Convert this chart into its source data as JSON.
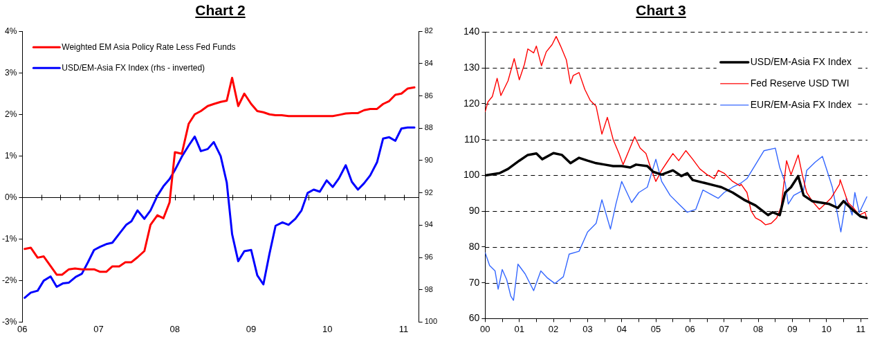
{
  "chart_data": [
    {
      "type": "line",
      "title": "Chart 2",
      "legend": "top left",
      "xlim": [
        2006,
        2011.2
      ],
      "xticks": [
        {
          "value": 2006,
          "label": "06"
        },
        {
          "value": 2006.25,
          "label": null
        },
        {
          "value": 2006.5,
          "label": null
        },
        {
          "value": 2006.75,
          "label": null
        },
        {
          "value": 2007,
          "label": "07"
        },
        {
          "value": 2007.25,
          "label": null
        },
        {
          "value": 2007.5,
          "label": null
        },
        {
          "value": 2007.75,
          "label": null
        },
        {
          "value": 2008,
          "label": "08"
        },
        {
          "value": 2008.25,
          "label": null
        },
        {
          "value": 2008.5,
          "label": null
        },
        {
          "value": 2008.75,
          "label": null
        },
        {
          "value": 2009,
          "label": "09"
        },
        {
          "value": 2009.25,
          "label": null
        },
        {
          "value": 2009.5,
          "label": null
        },
        {
          "value": 2009.75,
          "label": null
        },
        {
          "value": 2010,
          "label": "10"
        },
        {
          "value": 2010.25,
          "label": null
        },
        {
          "value": 2010.5,
          "label": null
        },
        {
          "value": 2010.75,
          "label": null
        },
        {
          "value": 2011,
          "label": "11"
        }
      ],
      "ylim": [
        -3,
        4
      ],
      "yticks": [
        {
          "value": -3,
          "label": "-3%"
        },
        {
          "value": -2,
          "label": "-2%"
        },
        {
          "value": -1,
          "label": "-1%"
        },
        {
          "value": 0,
          "label": "0%"
        },
        {
          "value": 1,
          "label": "1%"
        },
        {
          "value": 2,
          "label": "2%"
        },
        {
          "value": 3,
          "label": "3%"
        },
        {
          "value": 4,
          "label": "4%"
        }
      ],
      "y2lim": [
        100,
        82
      ],
      "y2ticks": [
        82,
        84,
        86,
        88,
        90,
        92,
        94,
        96,
        98,
        100
      ],
      "series": [
        {
          "name": "Weighted EM Asia Policy Rate Less Fed Funds",
          "color": "#ff0000",
          "x": [
            2006.03,
            2006.11,
            2006.2,
            2006.28,
            2006.45,
            2006.52,
            2006.61,
            2006.69,
            2006.78,
            2006.94,
            2007.02,
            2007.1,
            2007.18,
            2007.27,
            2007.35,
            2007.43,
            2007.51,
            2007.6,
            2007.68,
            2007.77,
            2007.85,
            2007.93,
            2008.0,
            2008.09,
            2008.18,
            2008.26,
            2008.34,
            2008.43,
            2008.51,
            2008.6,
            2008.68,
            2008.75,
            2008.83,
            2008.91,
            2009.0,
            2009.08,
            2009.16,
            2009.24,
            2009.32,
            2009.4,
            2009.49,
            2010.07,
            2010.16,
            2010.24,
            2010.32,
            2010.4,
            2010.48,
            2010.56,
            2010.65,
            2010.73,
            2010.81,
            2010.89,
            2010.97,
            2011.05,
            2011.14
          ],
          "values": [
            -1.24,
            -1.21,
            -1.45,
            -1.42,
            -1.86,
            -1.86,
            -1.73,
            -1.71,
            -1.73,
            -1.73,
            -1.79,
            -1.79,
            -1.66,
            -1.66,
            -1.56,
            -1.56,
            -1.44,
            -1.29,
            -0.66,
            -0.43,
            -0.5,
            -0.12,
            1.09,
            1.05,
            1.77,
            2.0,
            2.08,
            2.2,
            2.25,
            2.3,
            2.33,
            2.88,
            2.2,
            2.5,
            2.25,
            2.08,
            2.05,
            2.0,
            1.98,
            1.98,
            1.96,
            1.96,
            1.99,
            2.02,
            2.03,
            2.03,
            2.1,
            2.13,
            2.13,
            2.25,
            2.32,
            2.47,
            2.5,
            2.62,
            2.65
          ]
        },
        {
          "name": "USD/EM-Asia FX Index (rhs - inverted)",
          "color": "#0000ff",
          "axis": "y2",
          "x": [
            2006.03,
            2006.11,
            2006.2,
            2006.28,
            2006.37,
            2006.45,
            2006.53,
            2006.61,
            2006.7,
            2006.78,
            2006.86,
            2006.94,
            2007.02,
            2007.11,
            2007.18,
            2007.27,
            2007.36,
            2007.43,
            2007.51,
            2007.6,
            2007.68,
            2007.77,
            2007.85,
            2007.93,
            2008.0,
            2008.09,
            2008.18,
            2008.26,
            2008.34,
            2008.43,
            2008.51,
            2008.6,
            2008.68,
            2008.75,
            2008.83,
            2008.91,
            2009.0,
            2009.08,
            2009.16,
            2009.24,
            2009.32,
            2009.41,
            2009.49,
            2009.58,
            2009.66,
            2009.74,
            2009.82,
            2009.9,
            2009.99,
            2010.07,
            2010.15,
            2010.24,
            2010.32,
            2010.4,
            2010.48,
            2010.56,
            2010.65,
            2010.73,
            2010.81,
            2010.89,
            2010.97,
            2011.05,
            2011.14
          ],
          "values": [
            98.5,
            98.18,
            98.06,
            97.44,
            97.18,
            97.82,
            97.61,
            97.56,
            97.2,
            97.01,
            96.3,
            95.54,
            95.34,
            95.16,
            95.09,
            94.54,
            93.99,
            93.76,
            93.09,
            93.61,
            93.09,
            92.18,
            91.59,
            91.15,
            90.59,
            89.77,
            89.08,
            88.52,
            89.42,
            89.29,
            88.86,
            89.73,
            91.37,
            94.56,
            96.23,
            95.61,
            95.54,
            97.11,
            97.67,
            95.77,
            94.04,
            93.83,
            93.98,
            93.61,
            93.09,
            92.01,
            91.8,
            91.93,
            91.23,
            91.64,
            91.11,
            90.29,
            91.32,
            91.8,
            91.41,
            90.93,
            90.11,
            88.64,
            88.56,
            88.78,
            88.02,
            87.96,
            87.96
          ]
        }
      ]
    },
    {
      "type": "line",
      "title": "Chart 3",
      "legend": "top right",
      "grid": "y",
      "xlim": [
        2000,
        2011.2
      ],
      "xticks": [
        {
          "value": 2000,
          "label": "00"
        },
        {
          "value": 2000.5,
          "label": null
        },
        {
          "value": 2001,
          "label": "01"
        },
        {
          "value": 2001.5,
          "label": null
        },
        {
          "value": 2002,
          "label": "02"
        },
        {
          "value": 2002.5,
          "label": null
        },
        {
          "value": 2003,
          "label": "03"
        },
        {
          "value": 2003.5,
          "label": null
        },
        {
          "value": 2004,
          "label": "04"
        },
        {
          "value": 2004.5,
          "label": null
        },
        {
          "value": 2005,
          "label": "05"
        },
        {
          "value": 2005.5,
          "label": null
        },
        {
          "value": 2006,
          "label": "06"
        },
        {
          "value": 2006.5,
          "label": null
        },
        {
          "value": 2007,
          "label": "07"
        },
        {
          "value": 2007.5,
          "label": null
        },
        {
          "value": 2008,
          "label": "08"
        },
        {
          "value": 2008.5,
          "label": null
        },
        {
          "value": 2009,
          "label": "09"
        },
        {
          "value": 2009.5,
          "label": null
        },
        {
          "value": 2010,
          "label": "10"
        },
        {
          "value": 2010.5,
          "label": null
        },
        {
          "value": 2011,
          "label": "11"
        }
      ],
      "ylim": [
        60,
        140
      ],
      "yticks": [
        60,
        70,
        80,
        90,
        100,
        110,
        120,
        130,
        140
      ],
      "series": [
        {
          "name": "USD/EM-Asia FX Index",
          "color": "#000000",
          "x": [
            2000.0,
            2000.42,
            2000.67,
            2001.0,
            2001.25,
            2001.5,
            2001.67,
            2002.0,
            2002.25,
            2002.5,
            2002.75,
            2003.0,
            2003.25,
            2003.5,
            2003.75,
            2004.0,
            2004.25,
            2004.42,
            2004.75,
            2004.92,
            2005.17,
            2005.5,
            2005.75,
            2005.92,
            2006.08,
            2006.42,
            2006.75,
            2006.92,
            2007.25,
            2007.58,
            2007.92,
            2008.29,
            2008.42,
            2008.63,
            2008.79,
            2008.96,
            2009.17,
            2009.33,
            2009.58,
            2009.83,
            2010.08,
            2010.33,
            2010.5,
            2010.75,
            2011.0,
            2011.18
          ],
          "values": [
            100,
            100.6,
            101.8,
            104.1,
            105.7,
            106.1,
            104.5,
            106.2,
            105.7,
            103.4,
            104.9,
            104.1,
            103.4,
            103,
            102.6,
            102.6,
            102.2,
            103,
            102.6,
            101,
            100.2,
            101.4,
            99.8,
            100.6,
            98.7,
            97.9,
            97.1,
            96.7,
            95.2,
            93.2,
            91.6,
            88.9,
            89.7,
            88.9,
            95.2,
            96.7,
            99.8,
            94.4,
            92.8,
            92.4,
            92,
            90.9,
            92.8,
            90.5,
            88.5,
            88.1
          ]
        },
        {
          "name": "Fed Reserve USD TWI",
          "color": "#ff0000",
          "x": [
            2000.0,
            2000.08,
            2000.21,
            2000.35,
            2000.46,
            2000.67,
            2000.85,
            2001.0,
            2001.15,
            2001.25,
            2001.42,
            2001.5,
            2001.65,
            2001.79,
            2001.96,
            2002.08,
            2002.21,
            2002.38,
            2002.5,
            2002.58,
            2002.75,
            2002.92,
            2003.08,
            2003.25,
            2003.42,
            2003.58,
            2003.75,
            2003.92,
            2004.04,
            2004.21,
            2004.38,
            2004.54,
            2004.71,
            2004.83,
            2005.0,
            2005.17,
            2005.33,
            2005.5,
            2005.67,
            2005.88,
            2006.08,
            2006.29,
            2006.5,
            2006.71,
            2006.83,
            2007.0,
            2007.25,
            2007.46,
            2007.5,
            2007.67,
            2007.79,
            2007.92,
            2008.08,
            2008.21,
            2008.38,
            2008.54,
            2008.67,
            2008.83,
            2008.96,
            2009.17,
            2009.29,
            2009.42,
            2009.58,
            2009.79,
            2009.96,
            2010.13,
            2010.38,
            2010.4,
            2010.63,
            2010.79,
            2010.96,
            2011.13,
            2011.18
          ],
          "values": [
            117.8,
            120.5,
            122,
            127.1,
            122.3,
            126.4,
            132.6,
            126.7,
            131,
            135.3,
            134.2,
            136.1,
            130.6,
            134.5,
            136.5,
            138.8,
            136.1,
            132.2,
            125.6,
            127.9,
            128.7,
            124,
            120.9,
            119.3,
            111.5,
            116.2,
            110,
            106.1,
            103,
            106.9,
            110.8,
            107.6,
            106.1,
            102.6,
            98.3,
            101.4,
            103.7,
            106.1,
            104.1,
            106.9,
            104.5,
            101.8,
            100.2,
            99.1,
            101.4,
            100.6,
            98.3,
            97.1,
            97.5,
            95.2,
            90.1,
            88.1,
            87.3,
            86.2,
            86.6,
            88.1,
            91.2,
            104.1,
            100.2,
            105.7,
            100.2,
            95.2,
            92.8,
            90.5,
            92,
            93.6,
            97.5,
            98.8,
            92.4,
            90.9,
            88.9,
            89.7,
            87.8
          ]
        },
        {
          "name": "EUR/EM-Asia FX Index",
          "color": "#3366ff",
          "x": [
            2000.0,
            2000.13,
            2000.29,
            2000.38,
            2000.5,
            2000.63,
            2000.75,
            2000.83,
            2000.96,
            2001.17,
            2001.42,
            2001.63,
            2001.83,
            2002.04,
            2002.29,
            2002.46,
            2002.75,
            2003.0,
            2003.25,
            2003.42,
            2003.67,
            2003.83,
            2004.0,
            2004.29,
            2004.5,
            2004.75,
            2005.0,
            2005.17,
            2005.42,
            2005.67,
            2005.92,
            2006.17,
            2006.38,
            2006.67,
            2006.83,
            2007.0,
            2007.25,
            2007.5,
            2007.67,
            2007.92,
            2008.17,
            2008.5,
            2008.63,
            2008.79,
            2008.88,
            2009.04,
            2009.33,
            2009.42,
            2009.67,
            2009.88,
            2010.04,
            2010.17,
            2010.42,
            2010.58,
            2010.75,
            2010.83,
            2010.96,
            2011.18
          ],
          "values": [
            78.4,
            74.8,
            73.3,
            68.2,
            73.7,
            70.9,
            66.3,
            65.1,
            75.2,
            72.5,
            67.8,
            73.3,
            71.3,
            69.8,
            71.7,
            78,
            78.8,
            84.2,
            86.6,
            93.2,
            85,
            92,
            98.3,
            92.4,
            95.2,
            96.7,
            104.5,
            98.3,
            94.4,
            92,
            89.7,
            90.5,
            95.9,
            94.4,
            93.6,
            95.2,
            96.7,
            97.9,
            99.1,
            103,
            106.9,
            107.6,
            102.2,
            97.9,
            92,
            94.4,
            95.9,
            101.4,
            103.7,
            105.3,
            100.6,
            96.7,
            84.2,
            93.6,
            88.9,
            95.2,
            89.6,
            94
          ]
        }
      ]
    }
  ]
}
